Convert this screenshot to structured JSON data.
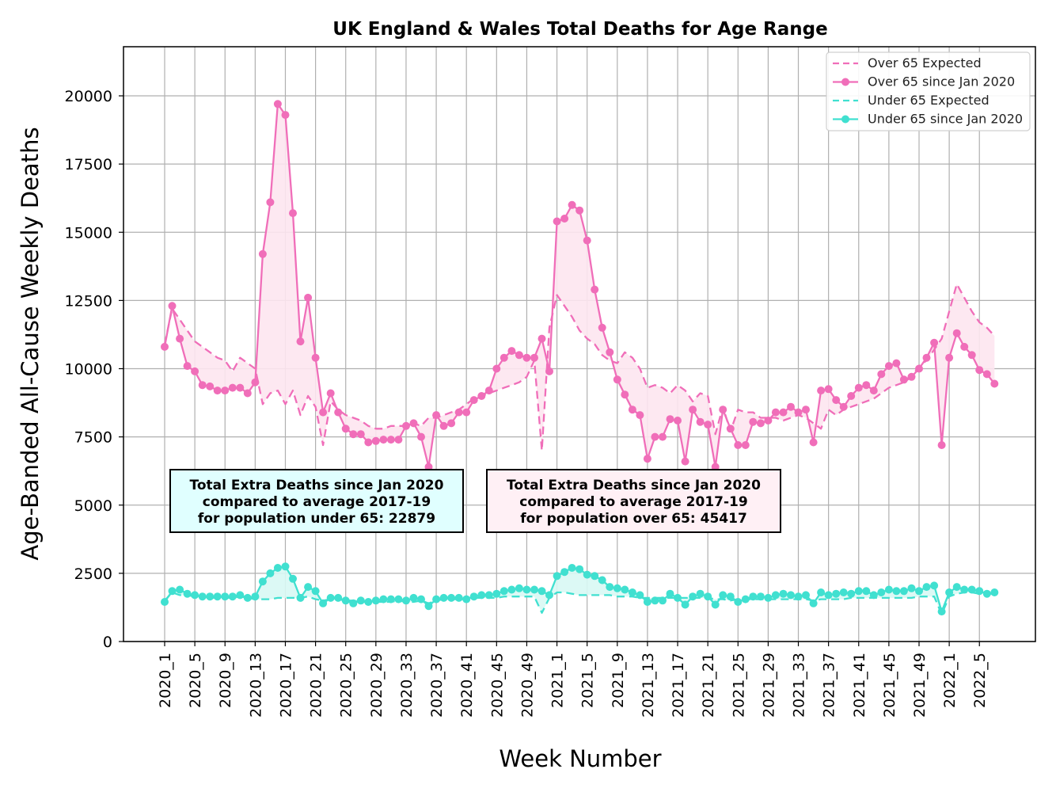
{
  "chart_data": {
    "type": "line",
    "title": "UK England & Wales Total Deaths for Age Range",
    "xlabel": "Week Number",
    "ylabel": "Age-Banded All-Cause Weekly Deaths",
    "ylim": [
      0,
      21800
    ],
    "yticks": [
      0,
      2500,
      5000,
      7500,
      10000,
      12500,
      15000,
      17500,
      20000
    ],
    "grid": true,
    "legend_position": "top-right",
    "x_tick_labels": [
      "2020_1",
      "2020_5",
      "2020_9",
      "2020_13",
      "2020_17",
      "2020_21",
      "2020_25",
      "2020_29",
      "2020_33",
      "2020_37",
      "2020_41",
      "2020_45",
      "2020_49",
      "2021_1",
      "2021_5",
      "2021_9",
      "2021_13",
      "2021_17",
      "2021_21",
      "2021_25",
      "2021_29",
      "2021_33",
      "2021_37",
      "2021_41",
      "2021_45",
      "2021_49",
      "2022_1",
      "2022_5"
    ],
    "series": [
      {
        "name": "Over 65 Expected",
        "style": "dashed",
        "color": "#f06eb9",
        "values": [
          10900,
          12200,
          11800,
          11400,
          11000,
          10800,
          10600,
          10400,
          10300,
          9900,
          10400,
          10200,
          10000,
          8700,
          9100,
          9200,
          8700,
          9200,
          8300,
          9000,
          8600,
          7200,
          8800,
          8500,
          8300,
          8200,
          8100,
          7900,
          7800,
          7800,
          7900,
          7900,
          7900,
          8000,
          7900,
          8200,
          8200,
          8300,
          8400,
          8500,
          8700,
          8900,
          9000,
          9100,
          9200,
          9300,
          9400,
          9500,
          9700,
          10300,
          7000,
          11500,
          12700,
          12300,
          11900,
          11400,
          11100,
          10900,
          10500,
          10300,
          10200,
          10600,
          10400,
          10000,
          9300,
          9400,
          9300,
          9100,
          9400,
          9200,
          8800,
          9100,
          9000,
          7600,
          8600,
          7700,
          8500,
          8400,
          8400,
          8200,
          8200,
          8200,
          8100,
          8200,
          8300,
          8200,
          8000,
          7800,
          8500,
          8300,
          8500,
          8600,
          8700,
          8800,
          8900,
          9100,
          9300,
          9400,
          9500,
          9700,
          10100,
          10300,
          10700,
          11100,
          12100,
          13100,
          12600,
          12100,
          11700,
          11500,
          11200
        ]
      },
      {
        "name": "Over 65 since Jan 2020",
        "style": "solid-markers",
        "color": "#f06eb9",
        "values": [
          10800,
          12300,
          11100,
          10100,
          9900,
          9400,
          9350,
          9200,
          9200,
          9300,
          9300,
          9100,
          9500,
          14200,
          16100,
          19700,
          19300,
          15700,
          11000,
          12600,
          10400,
          8400,
          9100,
          8400,
          7800,
          7600,
          7600,
          7300,
          7350,
          7400,
          7400,
          7400,
          7900,
          8000,
          7500,
          6400,
          8300,
          7900,
          8000,
          8400,
          8400,
          8850,
          9000,
          9200,
          10000,
          10400,
          10650,
          10500,
          10400,
          10400,
          11100,
          9900,
          15400,
          15500,
          16000,
          15800,
          14700,
          12900,
          11500,
          10600,
          9600,
          9050,
          8500,
          8300,
          6700,
          7500,
          7500,
          8150,
          8100,
          6600,
          8500,
          8050,
          7950,
          6400,
          8500,
          7800,
          7200,
          7200,
          8050,
          8000,
          8100,
          8400,
          8400,
          8600,
          8400,
          8500,
          7300,
          9200,
          9250,
          8850,
          8600,
          9000,
          9300,
          9400,
          9200,
          9800,
          10100,
          10200,
          9600,
          9700,
          10000,
          10400,
          10950,
          7200,
          10400,
          11300,
          10800,
          10500,
          9950,
          9800,
          9450
        ]
      },
      {
        "name": "Under 65 Expected",
        "style": "dashed",
        "color": "#40e0d0",
        "values": [
          1500,
          1800,
          1700,
          1700,
          1650,
          1650,
          1600,
          1600,
          1600,
          1600,
          1650,
          1600,
          1550,
          1550,
          1550,
          1600,
          1600,
          1600,
          1600,
          1650,
          1550,
          1500,
          1550,
          1550,
          1500,
          1500,
          1450,
          1450,
          1450,
          1450,
          1450,
          1500,
          1450,
          1450,
          1500,
          1400,
          1500,
          1550,
          1550,
          1550,
          1550,
          1600,
          1600,
          1600,
          1600,
          1650,
          1650,
          1650,
          1650,
          1650,
          1050,
          1600,
          1800,
          1800,
          1750,
          1700,
          1700,
          1700,
          1700,
          1700,
          1650,
          1650,
          1650,
          1600,
          1600,
          1600,
          1600,
          1600,
          1600,
          1600,
          1600,
          1600,
          1600,
          1550,
          1550,
          1500,
          1550,
          1550,
          1550,
          1550,
          1550,
          1550,
          1550,
          1550,
          1550,
          1550,
          1500,
          1550,
          1550,
          1550,
          1550,
          1600,
          1600,
          1600,
          1600,
          1600,
          1600,
          1600,
          1600,
          1600,
          1650,
          1650,
          1650,
          1000,
          1650,
          1750,
          1800,
          1800,
          1750,
          1750,
          1750
        ]
      },
      {
        "name": "Under 65 since Jan 2020",
        "style": "solid-markers",
        "color": "#40e0d0",
        "values": [
          1450,
          1850,
          1900,
          1750,
          1700,
          1650,
          1650,
          1650,
          1650,
          1650,
          1700,
          1600,
          1650,
          2200,
          2500,
          2700,
          2750,
          2300,
          1600,
          2000,
          1850,
          1400,
          1600,
          1600,
          1500,
          1400,
          1500,
          1450,
          1500,
          1550,
          1550,
          1550,
          1500,
          1600,
          1550,
          1300,
          1550,
          1600,
          1600,
          1600,
          1550,
          1650,
          1700,
          1700,
          1750,
          1850,
          1900,
          1950,
          1900,
          1900,
          1850,
          1700,
          2400,
          2550,
          2700,
          2650,
          2450,
          2400,
          2250,
          2000,
          1950,
          1900,
          1800,
          1700,
          1450,
          1500,
          1500,
          1750,
          1600,
          1350,
          1650,
          1750,
          1650,
          1350,
          1700,
          1650,
          1450,
          1550,
          1650,
          1650,
          1600,
          1700,
          1750,
          1700,
          1650,
          1700,
          1400,
          1800,
          1700,
          1750,
          1800,
          1750,
          1850,
          1850,
          1700,
          1800,
          1900,
          1850,
          1850,
          1950,
          1850,
          2000,
          2050,
          1100,
          1800,
          2000,
          1900,
          1900,
          1850,
          1750,
          1800
        ]
      }
    ],
    "annotations": [
      {
        "name": "under-65",
        "lines": [
          "Total Extra Deaths since Jan 2020",
          "compared to average 2017-19",
          "for population under 65: 22879"
        ],
        "background": "#e0ffff"
      },
      {
        "name": "over-65",
        "lines": [
          "Total Extra Deaths since Jan 2020",
          "compared to average 2017-19",
          "for population over 65: 45417"
        ],
        "background": "#fff0f5"
      }
    ]
  }
}
